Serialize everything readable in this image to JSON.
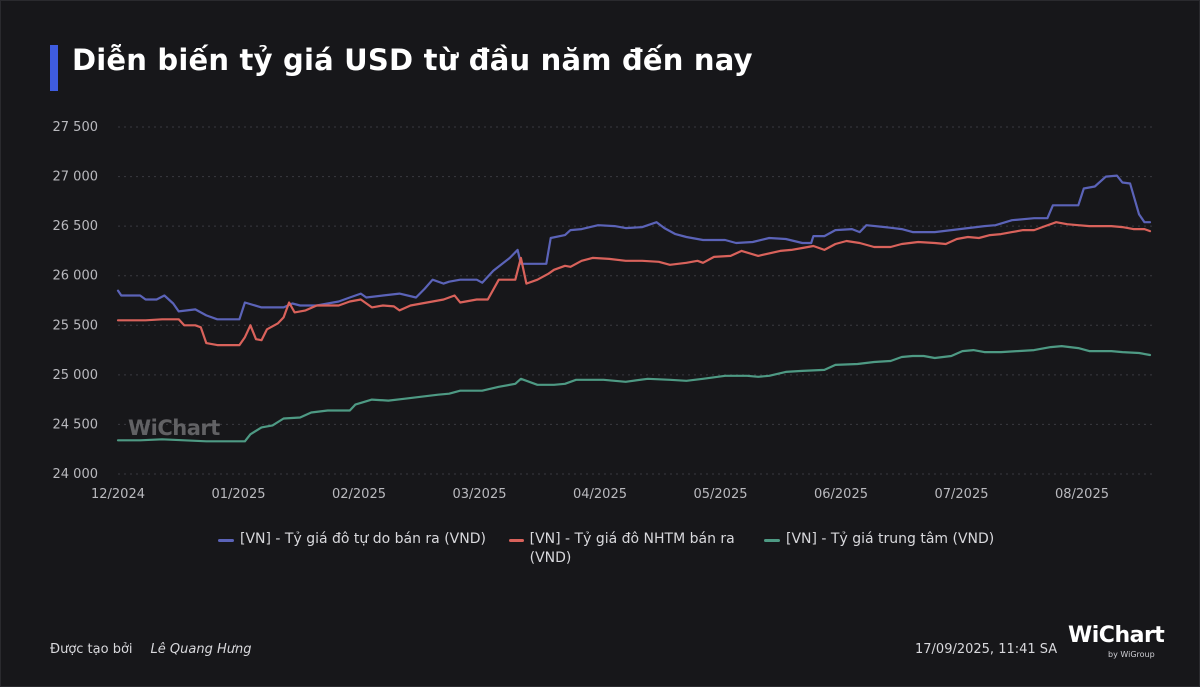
{
  "header": {
    "title": "Diễn biến tỷ giá USD từ đầu năm đến nay",
    "accent_color": "#3e5ce0"
  },
  "watermark": "WiChart",
  "legend": [
    {
      "label": "[VN] - Tỷ giá đô tự do bán ra (VND)",
      "color": "#5b63b8"
    },
    {
      "label": "[VN] - Tỷ giá đô NHTM bán ra (VND)",
      "color": "#d9625b"
    },
    {
      "label": "[VN] - Tỷ giá trung tâm (VND)",
      "color": "#4e9a84"
    }
  ],
  "footer": {
    "created_by_label": "Được tạo bởi",
    "author": "Lê Quang Hưng",
    "timestamp": "17/09/2025, 11:41 SA",
    "logo": "WiChart",
    "logo_sub": "by WiGroup"
  },
  "chart_data": {
    "type": "line",
    "title": "Diễn biến tỷ giá USD từ đầu năm đến nay",
    "xlabel": "",
    "ylabel": "",
    "ylim": [
      24000,
      27500
    ],
    "yticks": [
      24000,
      24500,
      25000,
      25500,
      26000,
      26500,
      27000,
      27500
    ],
    "ytick_labels": [
      "24 000",
      "24 500",
      "25 000",
      "25 500",
      "26 000",
      "26 500",
      "27 000",
      "27 500"
    ],
    "xtick_labels": [
      "12/2024",
      "01/2025",
      "02/2025",
      "03/2025",
      "04/2025",
      "05/2025",
      "06/2025",
      "07/2025",
      "08/2025"
    ],
    "grid": true,
    "legend_position": "bottom",
    "x_note": "x expressed in months since 12/2024 start (0 = 12/2024, 8 = 08/2025); series extends to ~8.5",
    "series": [
      {
        "name": "[VN] - Tỷ giá đô tự do bán ra (VND)",
        "color": "#5b63b8",
        "points": [
          [
            0,
            25850
          ],
          [
            0.03,
            25800
          ],
          [
            0.2,
            25800
          ],
          [
            0.25,
            25760
          ],
          [
            0.35,
            25760
          ],
          [
            0.42,
            25800
          ],
          [
            0.5,
            25720
          ],
          [
            0.55,
            25640
          ],
          [
            0.7,
            25660
          ],
          [
            0.8,
            25600
          ],
          [
            0.9,
            25560
          ],
          [
            1.0,
            25560
          ],
          [
            1.1,
            25560
          ],
          [
            1.15,
            25730
          ],
          [
            1.3,
            25680
          ],
          [
            1.5,
            25680
          ],
          [
            1.58,
            25720
          ],
          [
            1.65,
            25700
          ],
          [
            1.8,
            25700
          ],
          [
            1.9,
            25720
          ],
          [
            2.0,
            25740
          ],
          [
            2.1,
            25780
          ],
          [
            2.2,
            25820
          ],
          [
            2.25,
            25780
          ],
          [
            2.4,
            25800
          ],
          [
            2.55,
            25820
          ],
          [
            2.7,
            25780
          ],
          [
            2.78,
            25870
          ],
          [
            2.85,
            25960
          ],
          [
            2.95,
            25920
          ],
          [
            3.0,
            25940
          ],
          [
            3.1,
            25960
          ],
          [
            3.25,
            25960
          ],
          [
            3.3,
            25930
          ],
          [
            3.4,
            26050
          ],
          [
            3.55,
            26180
          ],
          [
            3.62,
            26260
          ],
          [
            3.65,
            26120
          ],
          [
            3.8,
            26120
          ],
          [
            3.88,
            26120
          ],
          [
            3.92,
            26380
          ],
          [
            4.05,
            26410
          ],
          [
            4.1,
            26460
          ],
          [
            4.2,
            26470
          ],
          [
            4.35,
            26510
          ],
          [
            4.5,
            26500
          ],
          [
            4.6,
            26480
          ],
          [
            4.75,
            26490
          ],
          [
            4.88,
            26540
          ],
          [
            4.95,
            26480
          ],
          [
            5.05,
            26420
          ],
          [
            5.15,
            26390
          ],
          [
            5.3,
            26360
          ],
          [
            5.5,
            26360
          ],
          [
            5.6,
            26330
          ],
          [
            5.75,
            26340
          ],
          [
            5.9,
            26380
          ],
          [
            6.05,
            26370
          ],
          [
            6.2,
            26330
          ],
          [
            6.28,
            26330
          ],
          [
            6.3,
            26400
          ],
          [
            6.4,
            26400
          ],
          [
            6.5,
            26460
          ],
          [
            6.65,
            26470
          ],
          [
            6.72,
            26440
          ],
          [
            6.78,
            26510
          ],
          [
            6.95,
            26490
          ],
          [
            7.1,
            26470
          ],
          [
            7.2,
            26440
          ],
          [
            7.4,
            26440
          ],
          [
            7.55,
            26460
          ],
          [
            7.7,
            26480
          ],
          [
            7.85,
            26500
          ],
          [
            7.95,
            26510
          ],
          [
            8.1,
            26560
          ],
          [
            8.3,
            26580
          ],
          [
            8.42,
            26580
          ],
          [
            8.47,
            26710
          ],
          [
            8.6,
            26710
          ],
          [
            8.7,
            26710
          ],
          [
            8.75,
            26880
          ],
          [
            8.85,
            26900
          ],
          [
            8.95,
            27000
          ],
          [
            9.05,
            27010
          ],
          [
            9.1,
            26940
          ],
          [
            9.17,
            26930
          ],
          [
            9.25,
            26620
          ],
          [
            9.3,
            26540
          ],
          [
            9.35,
            26540
          ]
        ]
      },
      {
        "name": "[VN] - Tỷ giá đô NHTM bán ra (VND)",
        "color": "#d9625b",
        "points": [
          [
            0,
            25550
          ],
          [
            0.1,
            25550
          ],
          [
            0.25,
            25550
          ],
          [
            0.4,
            25560
          ],
          [
            0.55,
            25560
          ],
          [
            0.6,
            25500
          ],
          [
            0.7,
            25500
          ],
          [
            0.75,
            25480
          ],
          [
            0.8,
            25320
          ],
          [
            0.9,
            25300
          ],
          [
            1.0,
            25300
          ],
          [
            1.1,
            25300
          ],
          [
            1.15,
            25380
          ],
          [
            1.2,
            25500
          ],
          [
            1.25,
            25360
          ],
          [
            1.3,
            25350
          ],
          [
            1.35,
            25460
          ],
          [
            1.45,
            25520
          ],
          [
            1.5,
            25580
          ],
          [
            1.55,
            25730
          ],
          [
            1.6,
            25630
          ],
          [
            1.7,
            25650
          ],
          [
            1.8,
            25700
          ],
          [
            1.9,
            25700
          ],
          [
            2.0,
            25700
          ],
          [
            2.1,
            25740
          ],
          [
            2.2,
            25760
          ],
          [
            2.3,
            25680
          ],
          [
            2.4,
            25700
          ],
          [
            2.5,
            25690
          ],
          [
            2.55,
            25650
          ],
          [
            2.65,
            25700
          ],
          [
            2.75,
            25720
          ],
          [
            2.85,
            25740
          ],
          [
            2.95,
            25760
          ],
          [
            3.05,
            25800
          ],
          [
            3.1,
            25730
          ],
          [
            3.25,
            25760
          ],
          [
            3.35,
            25760
          ],
          [
            3.45,
            25960
          ],
          [
            3.6,
            25960
          ],
          [
            3.65,
            26180
          ],
          [
            3.7,
            25920
          ],
          [
            3.8,
            25960
          ],
          [
            3.9,
            26020
          ],
          [
            3.95,
            26060
          ],
          [
            4.05,
            26100
          ],
          [
            4.1,
            26090
          ],
          [
            4.2,
            26150
          ],
          [
            4.3,
            26180
          ],
          [
            4.45,
            26170
          ],
          [
            4.6,
            26150
          ],
          [
            4.75,
            26150
          ],
          [
            4.9,
            26140
          ],
          [
            5.0,
            26110
          ],
          [
            5.15,
            26130
          ],
          [
            5.25,
            26150
          ],
          [
            5.3,
            26130
          ],
          [
            5.4,
            26190
          ],
          [
            5.55,
            26200
          ],
          [
            5.65,
            26250
          ],
          [
            5.8,
            26200
          ],
          [
            6.0,
            26250
          ],
          [
            6.1,
            26260
          ],
          [
            6.2,
            26280
          ],
          [
            6.3,
            26300
          ],
          [
            6.4,
            26260
          ],
          [
            6.5,
            26320
          ],
          [
            6.6,
            26350
          ],
          [
            6.72,
            26330
          ],
          [
            6.85,
            26290
          ],
          [
            7.0,
            26290
          ],
          [
            7.1,
            26320
          ],
          [
            7.25,
            26340
          ],
          [
            7.4,
            26330
          ],
          [
            7.5,
            26320
          ],
          [
            7.6,
            26370
          ],
          [
            7.7,
            26390
          ],
          [
            7.8,
            26380
          ],
          [
            7.9,
            26410
          ],
          [
            8.0,
            26420
          ],
          [
            8.1,
            26440
          ],
          [
            8.2,
            26460
          ],
          [
            8.3,
            26460
          ],
          [
            8.4,
            26500
          ],
          [
            8.5,
            26540
          ],
          [
            8.6,
            26520
          ],
          [
            8.7,
            26510
          ],
          [
            8.8,
            26500
          ],
          [
            8.9,
            26500
          ],
          [
            9.0,
            26500
          ],
          [
            9.1,
            26490
          ],
          [
            9.2,
            26470
          ],
          [
            9.3,
            26470
          ],
          [
            9.35,
            26450
          ]
        ]
      },
      {
        "name": "[VN] - Tỷ giá trung tâm (VND)",
        "color": "#4e9a84",
        "points": [
          [
            0,
            24340
          ],
          [
            0.2,
            24340
          ],
          [
            0.4,
            24350
          ],
          [
            0.6,
            24340
          ],
          [
            0.8,
            24330
          ],
          [
            1.0,
            24330
          ],
          [
            1.15,
            24330
          ],
          [
            1.2,
            24400
          ],
          [
            1.3,
            24470
          ],
          [
            1.4,
            24490
          ],
          [
            1.5,
            24560
          ],
          [
            1.65,
            24570
          ],
          [
            1.75,
            24620
          ],
          [
            1.9,
            24640
          ],
          [
            2.1,
            24640
          ],
          [
            2.15,
            24700
          ],
          [
            2.3,
            24750
          ],
          [
            2.45,
            24740
          ],
          [
            2.6,
            24760
          ],
          [
            2.75,
            24780
          ],
          [
            2.9,
            24800
          ],
          [
            3.0,
            24810
          ],
          [
            3.1,
            24840
          ],
          [
            3.3,
            24840
          ],
          [
            3.45,
            24880
          ],
          [
            3.6,
            24910
          ],
          [
            3.65,
            24960
          ],
          [
            3.8,
            24900
          ],
          [
            3.95,
            24900
          ],
          [
            4.05,
            24910
          ],
          [
            4.15,
            24950
          ],
          [
            4.4,
            24950
          ],
          [
            4.6,
            24930
          ],
          [
            4.8,
            24960
          ],
          [
            5.0,
            24950
          ],
          [
            5.15,
            24940
          ],
          [
            5.3,
            24960
          ],
          [
            5.5,
            24990
          ],
          [
            5.7,
            24990
          ],
          [
            5.8,
            24980
          ],
          [
            5.9,
            24990
          ],
          [
            6.05,
            25030
          ],
          [
            6.2,
            25040
          ],
          [
            6.4,
            25050
          ],
          [
            6.5,
            25100
          ],
          [
            6.7,
            25110
          ],
          [
            6.85,
            25130
          ],
          [
            7.0,
            25140
          ],
          [
            7.1,
            25180
          ],
          [
            7.2,
            25190
          ],
          [
            7.3,
            25190
          ],
          [
            7.4,
            25170
          ],
          [
            7.55,
            25190
          ],
          [
            7.65,
            25240
          ],
          [
            7.75,
            25250
          ],
          [
            7.85,
            25230
          ],
          [
            8.0,
            25230
          ],
          [
            8.15,
            25240
          ],
          [
            8.3,
            25250
          ],
          [
            8.45,
            25280
          ],
          [
            8.55,
            25290
          ],
          [
            8.7,
            25270
          ],
          [
            8.8,
            25240
          ],
          [
            9.0,
            25240
          ],
          [
            9.1,
            25230
          ],
          [
            9.25,
            25220
          ],
          [
            9.35,
            25200
          ]
        ]
      }
    ]
  }
}
